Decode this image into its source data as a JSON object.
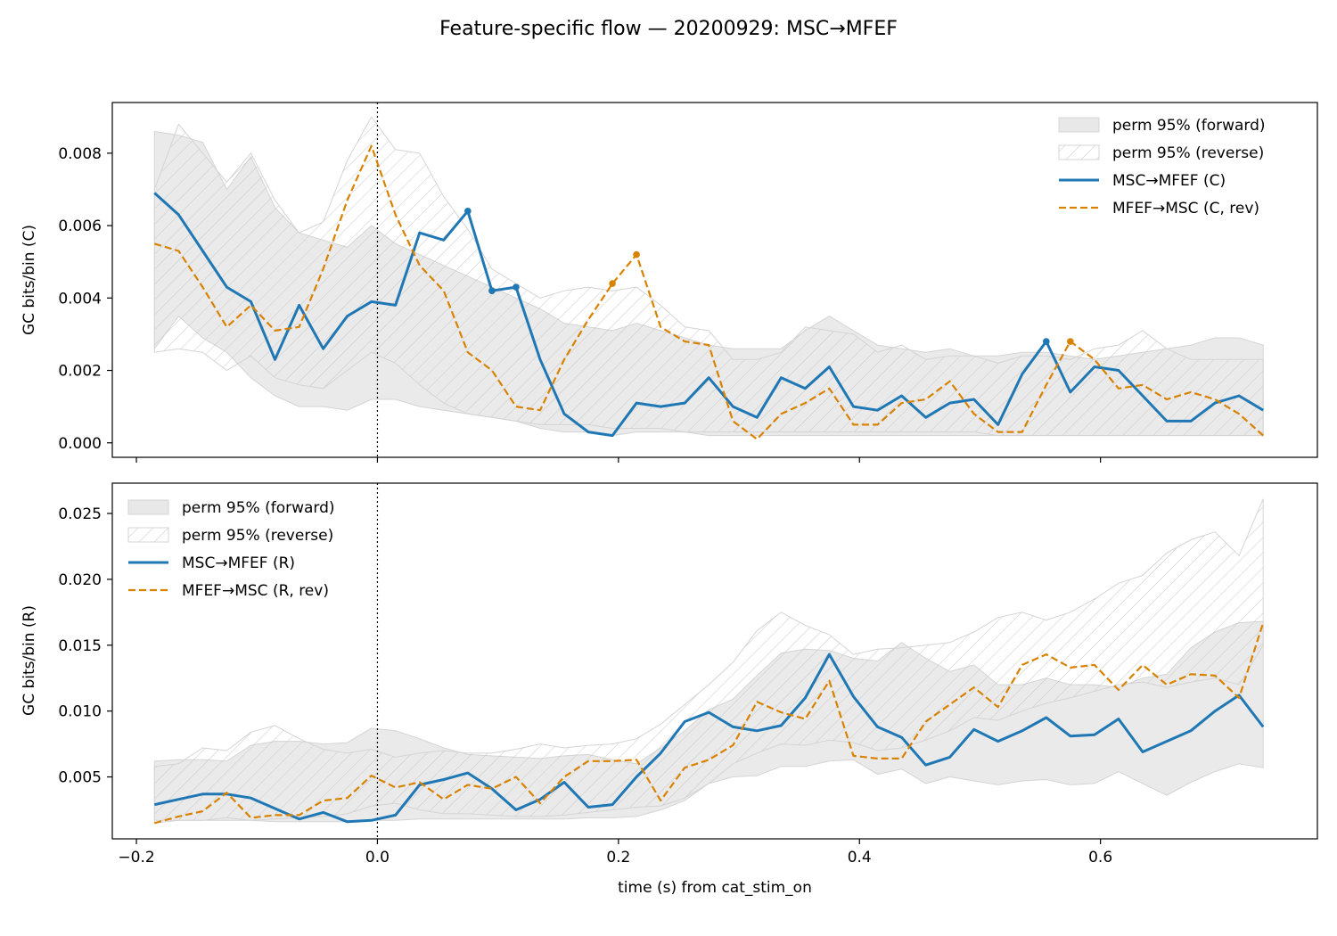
{
  "figure": {
    "suptitle": "Feature-specific flow — 20200929: MSC→MFEF",
    "xlabel": "time (s) from cat_stim_on"
  },
  "colors": {
    "forward_line": "#1f77b4",
    "reverse_line": "#d98200",
    "band_fill": "#e8e8e8",
    "band_edge": "#d4d4d4",
    "hatch": "#c8c8c8"
  },
  "chart_data": [
    {
      "type": "line",
      "panel": "top",
      "ylabel": "GC bits/bin (C)",
      "xlim": [
        -0.22,
        0.78
      ],
      "ylim": [
        -0.0004,
        0.0094
      ],
      "xticks": [
        -0.2,
        0.0,
        0.2,
        0.4,
        0.6
      ],
      "xtick_labels": [],
      "yticks": [
        0.0,
        0.002,
        0.004,
        0.006,
        0.008
      ],
      "ytick_labels": [
        "0.000",
        "0.002",
        "0.004",
        "0.006",
        "0.008"
      ],
      "vline_x": 0.0,
      "legend_position": "upper right",
      "legend": [
        {
          "kind": "band",
          "label": "perm 95% (forward)"
        },
        {
          "kind": "hatch",
          "label": "perm 95% (reverse)"
        },
        {
          "kind": "solid",
          "label": "MSC→MFEF (C)"
        },
        {
          "kind": "dashed",
          "label": "MFEF→MSC (C, rev)"
        }
      ],
      "x": [
        -0.185,
        -0.165,
        -0.145,
        -0.125,
        -0.105,
        -0.085,
        -0.065,
        -0.045,
        -0.025,
        -0.005,
        0.015,
        0.035,
        0.055,
        0.075,
        0.095,
        0.115,
        0.135,
        0.155,
        0.175,
        0.195,
        0.215,
        0.235,
        0.255,
        0.275,
        0.295,
        0.315,
        0.335,
        0.355,
        0.375,
        0.395,
        0.415,
        0.435,
        0.455,
        0.475,
        0.495,
        0.515,
        0.535,
        0.555,
        0.575,
        0.595,
        0.615,
        0.635,
        0.655,
        0.675,
        0.695,
        0.715,
        0.735
      ],
      "series": [
        {
          "name": "MSC→MFEF (C)",
          "style": "solid",
          "values": [
            0.0069,
            0.0063,
            0.0053,
            0.0043,
            0.0039,
            0.0023,
            0.0038,
            0.0026,
            0.0035,
            0.0039,
            0.0038,
            0.0058,
            0.0056,
            0.0064,
            0.0042,
            0.0043,
            0.0023,
            0.0008,
            0.0003,
            0.0002,
            0.0011,
            0.001,
            0.0011,
            0.0018,
            0.001,
            0.0007,
            0.0018,
            0.0015,
            0.0021,
            0.001,
            0.0009,
            0.0013,
            0.0007,
            0.0011,
            0.0012,
            0.0005,
            0.0019,
            0.0028,
            0.0014,
            0.0021,
            0.002,
            0.0013,
            0.0006,
            0.0006,
            0.0011,
            0.0013,
            0.0009
          ],
          "markers": [
            13,
            14,
            15,
            37
          ]
        },
        {
          "name": "MFEF→MSC (C, rev)",
          "style": "dashed",
          "values": [
            0.0055,
            0.0053,
            0.0043,
            0.0032,
            0.0038,
            0.0031,
            0.0032,
            0.0048,
            0.0067,
            0.0082,
            0.0063,
            0.0049,
            0.0042,
            0.0025,
            0.002,
            0.001,
            0.0009,
            0.0023,
            0.0034,
            0.0044,
            0.0052,
            0.0032,
            0.0028,
            0.0027,
            0.0006,
            0.0001,
            0.0008,
            0.0011,
            0.0015,
            0.0005,
            0.0005,
            0.0011,
            0.0012,
            0.0017,
            0.0008,
            0.0003,
            0.0003,
            0.0016,
            0.0028,
            0.0023,
            0.0015,
            0.0016,
            0.0012,
            0.0014,
            0.0012,
            0.0008,
            0.0002
          ],
          "markers": [
            19,
            20,
            38
          ]
        }
      ],
      "bands": [
        {
          "name": "perm 95% (forward)",
          "lower": [
            0.0026,
            0.0035,
            0.0029,
            0.0025,
            0.0018,
            0.0013,
            0.001,
            0.001,
            0.0009,
            0.0012,
            0.0012,
            0.001,
            0.0009,
            0.0008,
            0.0007,
            0.0006,
            0.0004,
            0.0003,
            0.0003,
            0.0002,
            0.0003,
            0.0003,
            0.0003,
            0.0002,
            0.0002,
            0.0002,
            0.0002,
            0.0002,
            0.0002,
            0.0002,
            0.0002,
            0.0002,
            0.0002,
            0.0002,
            0.0002,
            0.0002,
            0.0002,
            0.0002,
            0.0002,
            0.0002,
            0.0002,
            0.0002,
            0.0002,
            0.0002,
            0.0002,
            0.0002,
            0.0002
          ],
          "upper": [
            0.0086,
            0.0085,
            0.0083,
            0.007,
            0.0079,
            0.0065,
            0.0058,
            0.0056,
            0.0054,
            0.006,
            0.0055,
            0.0052,
            0.0049,
            0.0046,
            0.0043,
            0.004,
            0.0037,
            0.0033,
            0.0032,
            0.0031,
            0.0033,
            0.0031,
            0.0029,
            0.0027,
            0.0026,
            0.0026,
            0.0026,
            0.0031,
            0.0035,
            0.0031,
            0.0027,
            0.0026,
            0.0025,
            0.0026,
            0.0024,
            0.0024,
            0.0025,
            0.0025,
            0.0024,
            0.0023,
            0.0024,
            0.0025,
            0.0026,
            0.0027,
            0.0029,
            0.0029,
            0.0027
          ]
        },
        {
          "name": "perm 95% (reverse)",
          "lower": [
            0.0025,
            0.0026,
            0.0025,
            0.002,
            0.0024,
            0.0018,
            0.0016,
            0.0015,
            0.002,
            0.0025,
            0.0022,
            0.0016,
            0.0011,
            0.0008,
            0.0007,
            0.0006,
            0.0005,
            0.0005,
            0.0005,
            0.0004,
            0.0004,
            0.0004,
            0.0003,
            0.0003,
            0.0003,
            0.0003,
            0.0003,
            0.0003,
            0.0003,
            0.0003,
            0.0003,
            0.0003,
            0.0003,
            0.0003,
            0.0003,
            0.0002,
            0.0002,
            0.0002,
            0.0002,
            0.0002,
            0.0002,
            0.0002,
            0.0002,
            0.0002,
            0.0002,
            0.0002,
            0.0002
          ],
          "upper": [
            0.007,
            0.0088,
            0.008,
            0.0072,
            0.008,
            0.0067,
            0.0058,
            0.0061,
            0.0078,
            0.009,
            0.0081,
            0.008,
            0.0068,
            0.0059,
            0.0048,
            0.0044,
            0.004,
            0.0042,
            0.0043,
            0.0042,
            0.0043,
            0.0038,
            0.0032,
            0.0031,
            0.0023,
            0.0023,
            0.0025,
            0.0032,
            0.0031,
            0.003,
            0.0025,
            0.0027,
            0.0023,
            0.0024,
            0.0024,
            0.0022,
            0.0024,
            0.0024,
            0.0023,
            0.0026,
            0.0027,
            0.0031,
            0.0026,
            0.0023,
            0.0023,
            0.0023,
            0.0023
          ]
        }
      ]
    },
    {
      "type": "line",
      "panel": "bottom",
      "ylabel": "GC bits/bin (R)",
      "xlim": [
        -0.22,
        0.78
      ],
      "ylim": [
        0.0003,
        0.0273
      ],
      "xticks": [
        -0.2,
        0.0,
        0.2,
        0.4,
        0.6
      ],
      "xtick_labels": [
        "−0.2",
        "0.0",
        "0.2",
        "0.4",
        "0.6"
      ],
      "yticks": [
        0.005,
        0.01,
        0.015,
        0.02,
        0.025
      ],
      "ytick_labels": [
        "0.005",
        "0.010",
        "0.015",
        "0.020",
        "0.025"
      ],
      "vline_x": 0.0,
      "legend_position": "upper left",
      "legend": [
        {
          "kind": "band",
          "label": "perm 95% (forward)"
        },
        {
          "kind": "hatch",
          "label": "perm 95% (reverse)"
        },
        {
          "kind": "solid",
          "label": "MSC→MFEF (R)"
        },
        {
          "kind": "dashed",
          "label": "MFEF→MSC (R, rev)"
        }
      ],
      "x": [
        -0.185,
        -0.165,
        -0.145,
        -0.125,
        -0.105,
        -0.085,
        -0.065,
        -0.045,
        -0.025,
        -0.005,
        0.015,
        0.035,
        0.055,
        0.075,
        0.095,
        0.115,
        0.135,
        0.155,
        0.175,
        0.195,
        0.215,
        0.235,
        0.255,
        0.275,
        0.295,
        0.315,
        0.335,
        0.355,
        0.375,
        0.395,
        0.415,
        0.435,
        0.455,
        0.475,
        0.495,
        0.515,
        0.535,
        0.555,
        0.575,
        0.595,
        0.615,
        0.635,
        0.655,
        0.675,
        0.695,
        0.715,
        0.735
      ],
      "series": [
        {
          "name": "MSC→MFEF (R)",
          "style": "solid",
          "values": [
            0.0029,
            0.0033,
            0.0037,
            0.0037,
            0.0034,
            0.0026,
            0.0018,
            0.0023,
            0.0016,
            0.0017,
            0.0021,
            0.0044,
            0.0048,
            0.0053,
            0.0041,
            0.0025,
            0.0033,
            0.0046,
            0.0027,
            0.0029,
            0.005,
            0.0068,
            0.0092,
            0.0099,
            0.0088,
            0.0085,
            0.0089,
            0.011,
            0.0143,
            0.0111,
            0.0088,
            0.008,
            0.0059,
            0.0065,
            0.0086,
            0.0077,
            0.0085,
            0.0095,
            0.0081,
            0.0082,
            0.0094,
            0.0069,
            0.0077,
            0.0085,
            0.01,
            0.0112,
            0.0088
          ],
          "markers": []
        },
        {
          "name": "MFEF→MSC (R, rev)",
          "style": "dashed",
          "values": [
            0.0015,
            0.002,
            0.0024,
            0.0038,
            0.0019,
            0.0021,
            0.0021,
            0.0032,
            0.0034,
            0.0051,
            0.0042,
            0.0046,
            0.0033,
            0.0044,
            0.0041,
            0.005,
            0.003,
            0.005,
            0.0062,
            0.0062,
            0.0063,
            0.0032,
            0.0057,
            0.0063,
            0.0074,
            0.0107,
            0.0099,
            0.0094,
            0.0123,
            0.0066,
            0.0064,
            0.0064,
            0.0092,
            0.0105,
            0.0118,
            0.0103,
            0.0135,
            0.0143,
            0.0133,
            0.0135,
            0.0116,
            0.0135,
            0.012,
            0.0128,
            0.0127,
            0.011,
            0.0167
          ],
          "markers": []
        }
      ],
      "bands": [
        {
          "name": "perm 95% (forward)",
          "lower": [
            0.0017,
            0.0017,
            0.0017,
            0.0017,
            0.0017,
            0.0016,
            0.0016,
            0.0016,
            0.0016,
            0.0017,
            0.0017,
            0.0018,
            0.0018,
            0.0018,
            0.0018,
            0.0018,
            0.0018,
            0.0018,
            0.0019,
            0.0019,
            0.002,
            0.0025,
            0.0032,
            0.0045,
            0.005,
            0.0051,
            0.0058,
            0.0058,
            0.0062,
            0.0063,
            0.0052,
            0.0056,
            0.0045,
            0.005,
            0.0047,
            0.0044,
            0.0047,
            0.0048,
            0.0044,
            0.0045,
            0.0054,
            0.0045,
            0.0036,
            0.0046,
            0.0054,
            0.006,
            0.0057
          ],
          "upper": [
            0.0062,
            0.0063,
            0.0063,
            0.0062,
            0.0074,
            0.0077,
            0.0077,
            0.0075,
            0.0076,
            0.0087,
            0.0085,
            0.0079,
            0.0072,
            0.0067,
            0.0066,
            0.0065,
            0.0064,
            0.0066,
            0.0067,
            0.0063,
            0.006,
            0.0072,
            0.0085,
            0.0101,
            0.0109,
            0.0127,
            0.0144,
            0.0147,
            0.0146,
            0.014,
            0.0138,
            0.0152,
            0.014,
            0.013,
            0.0135,
            0.012,
            0.012,
            0.0125,
            0.012,
            0.012,
            0.0118,
            0.0125,
            0.0128,
            0.0148,
            0.016,
            0.0167,
            0.0168
          ]
        },
        {
          "name": "perm 95% (reverse)",
          "lower": [
            0.0015,
            0.0017,
            0.0017,
            0.0019,
            0.0017,
            0.0018,
            0.0019,
            0.002,
            0.0022,
            0.0028,
            0.003,
            0.0025,
            0.0022,
            0.0022,
            0.0021,
            0.002,
            0.002,
            0.0021,
            0.0023,
            0.0025,
            0.0027,
            0.0028,
            0.0034,
            0.0045,
            0.006,
            0.0068,
            0.0075,
            0.0074,
            0.0078,
            0.0076,
            0.007,
            0.0072,
            0.0078,
            0.0085,
            0.0095,
            0.0093,
            0.01,
            0.0106,
            0.011,
            0.0115,
            0.012,
            0.0122,
            0.0118,
            0.0122,
            0.0125,
            0.012,
            0.015
          ],
          "upper": [
            0.0058,
            0.006,
            0.0072,
            0.007,
            0.0084,
            0.0089,
            0.0079,
            0.0071,
            0.0068,
            0.0071,
            0.0065,
            0.0068,
            0.007,
            0.0068,
            0.0068,
            0.0071,
            0.0075,
            0.0072,
            0.0074,
            0.0075,
            0.0079,
            0.009,
            0.0105,
            0.012,
            0.0137,
            0.0161,
            0.0175,
            0.0165,
            0.0158,
            0.0143,
            0.0147,
            0.0148,
            0.015,
            0.0152,
            0.016,
            0.0171,
            0.0175,
            0.0169,
            0.0175,
            0.0185,
            0.0197,
            0.0203,
            0.022,
            0.023,
            0.0236,
            0.0218,
            0.0261
          ]
        }
      ]
    }
  ]
}
